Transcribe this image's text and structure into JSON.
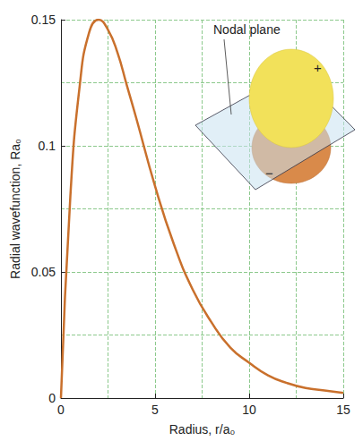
{
  "chart_data": {
    "type": "line",
    "x_label": "Radius, r/a₀",
    "y_label": "Radial wavefunction, Ra₀",
    "x": [
      0,
      0.5,
      1,
      1.5,
      2,
      2.5,
      3,
      3.5,
      4,
      5,
      6,
      7,
      8,
      9,
      10,
      11,
      12,
      13,
      14,
      15
    ],
    "values": [
      0,
      0.08,
      0.124,
      0.145,
      0.15,
      0.146,
      0.137,
      0.124,
      0.111,
      0.084,
      0.061,
      0.043,
      0.03,
      0.02,
      0.014,
      0.009,
      0.006,
      0.004,
      0.003,
      0.002
    ],
    "color": "#c9702c",
    "xlim": [
      0,
      15
    ],
    "xticks": [
      0,
      5,
      10,
      15
    ],
    "ylim": [
      0,
      0.15
    ],
    "yticks": [
      0,
      0.05,
      0.1,
      0.15
    ],
    "grid": true,
    "annotations": [
      "Nodal plane",
      "+",
      "−"
    ]
  }
}
